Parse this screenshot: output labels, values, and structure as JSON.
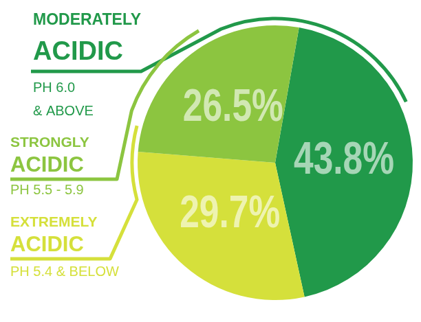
{
  "chart_data": {
    "type": "pie",
    "categories": [
      "MODERATELY ACIDIC",
      "EXTREMELY ACIDIC",
      "STRONGLY ACIDIC"
    ],
    "ranges": [
      [
        "PH 6.0",
        "& ABOVE"
      ],
      [
        "PH 5.4 & BELOW"
      ],
      [
        "PH 5.5 - 5.9"
      ]
    ],
    "values": [
      43.8,
      29.7,
      26.5
    ],
    "value_labels": [
      "43.8%",
      "29.7%",
      "26.5%"
    ],
    "colors": [
      "#21994a",
      "#d5e03b",
      "#8cc540"
    ],
    "data_labels": true
  }
}
